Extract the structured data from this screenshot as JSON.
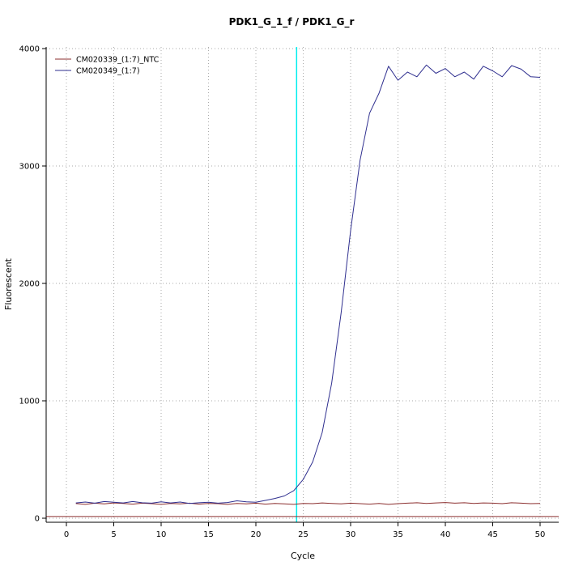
{
  "chart_data": {
    "type": "line",
    "title": "PDK1_G_1_f / PDK1_G_r",
    "xlabel": "Cycle",
    "ylabel": "Fluorescent",
    "xlim": [
      0,
      50
    ],
    "ylim": [
      0,
      4000
    ],
    "xticks": [
      0,
      5,
      10,
      15,
      20,
      25,
      30,
      35,
      40,
      45,
      50
    ],
    "yticks": [
      0,
      1000,
      2000,
      3000,
      4000
    ],
    "grid": "dotted",
    "grid_color": "#aaaaaa",
    "legend_position": "top-left",
    "x": [
      1,
      2,
      3,
      4,
      5,
      6,
      7,
      8,
      9,
      10,
      11,
      12,
      13,
      14,
      15,
      16,
      17,
      18,
      19,
      20,
      21,
      22,
      23,
      24,
      25,
      26,
      27,
      28,
      29,
      30,
      31,
      32,
      33,
      34,
      35,
      36,
      37,
      38,
      39,
      40,
      41,
      42,
      43,
      44,
      45,
      46,
      47,
      48,
      49,
      50
    ],
    "series": [
      {
        "name": "CM020339_(1:7)_NTC",
        "color": "#8b2e2e",
        "values": [
          125,
          118,
          128,
          122,
          130,
          126,
          120,
          128,
          124,
          118,
          126,
          122,
          128,
          120,
          126,
          124,
          118,
          126,
          122,
          128,
          120,
          126,
          122,
          118,
          126,
          124,
          130,
          126,
          122,
          128,
          124,
          120,
          126,
          118,
          124,
          128,
          132,
          126,
          130,
          134,
          128,
          132,
          126,
          130,
          128,
          124,
          132,
          128,
          124,
          126
        ]
      },
      {
        "name": "CM020349_(1:7)",
        "color": "#2f2f8f",
        "values": [
          130,
          138,
          128,
          142,
          136,
          130,
          142,
          132,
          128,
          140,
          130,
          138,
          126,
          132,
          136,
          128,
          134,
          148,
          140,
          136,
          152,
          168,
          190,
          235,
          330,
          480,
          730,
          1150,
          1750,
          2450,
          3050,
          3450,
          3620,
          3850,
          3730,
          3800,
          3760,
          3860,
          3790,
          3830,
          3760,
          3800,
          3740,
          3850,
          3810,
          3760,
          3855,
          3825,
          3760,
          3755
        ]
      }
    ],
    "ct_line": {
      "x": 24.3,
      "color": "#00eeee"
    },
    "baseline": {
      "y": 15,
      "color": "#8b2e2e"
    }
  }
}
